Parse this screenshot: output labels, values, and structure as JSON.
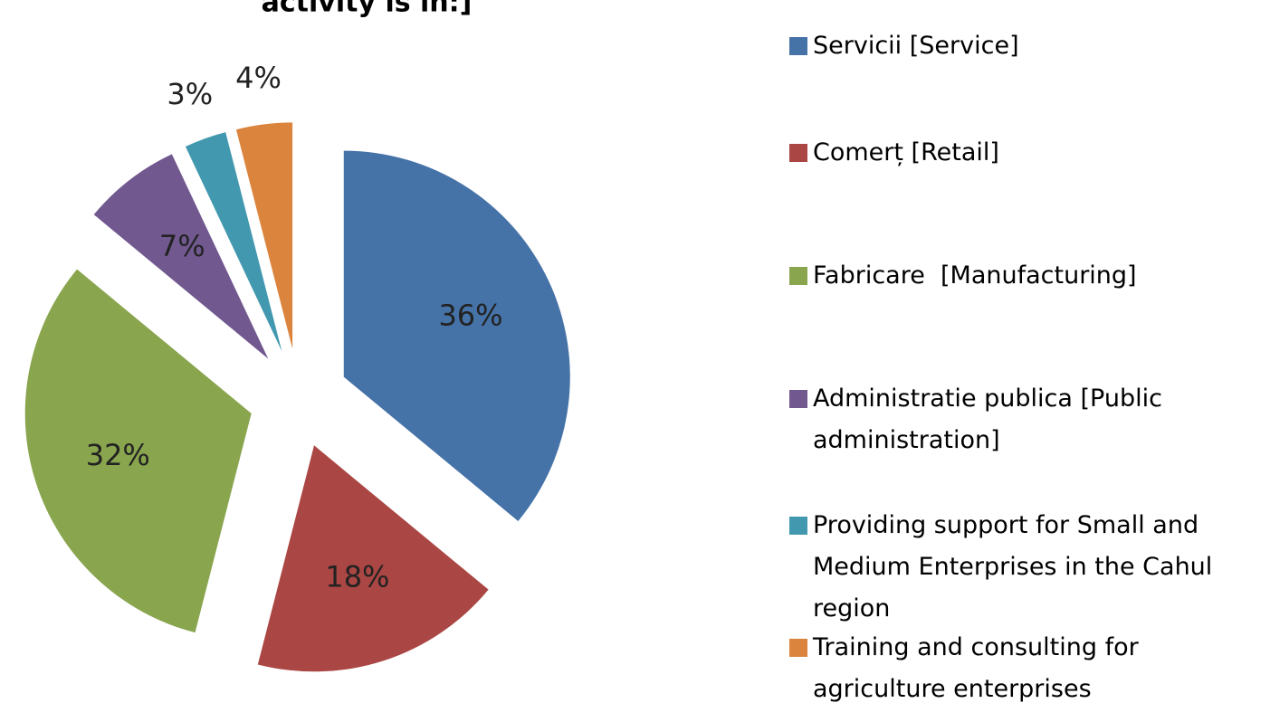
{
  "chart_data": {
    "type": "pie",
    "title": "activity is in:]",
    "categories": [
      "Servicii [Service]",
      "Comerț [Retail]",
      "Fabricare  [Manufacturing]",
      "Administratie publica [Public administration]",
      "Providing support for Small and Medium Enterprises in the Cahul region",
      "Training and consulting for agriculture enterprises"
    ],
    "values": [
      36,
      18,
      32,
      7,
      3,
      4
    ],
    "value_labels": [
      "36%",
      "18%",
      "32%",
      "7%",
      "3%",
      "4%"
    ],
    "colors": [
      "#4572a7",
      "#aa4643",
      "#89a54e",
      "#71588f",
      "#4198af",
      "#db843d"
    ],
    "legend": "right"
  }
}
